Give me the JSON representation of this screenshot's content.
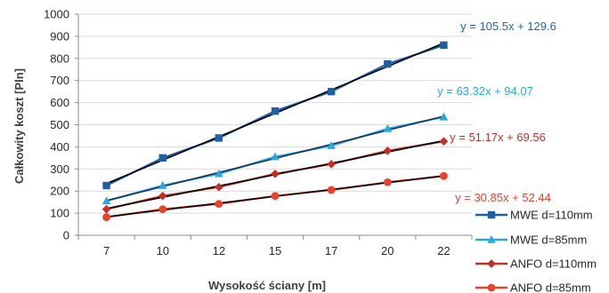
{
  "chart_data": {
    "type": "line",
    "title": "",
    "xlabel": "Wysokość ściany [m]",
    "ylabel": "Całkowity koszt [Pln]",
    "categories": [
      "7",
      "10",
      "12",
      "15",
      "17",
      "20",
      "22"
    ],
    "ylim": [
      0,
      1000
    ],
    "yticks": [
      0,
      100,
      200,
      300,
      400,
      500,
      600,
      700,
      800,
      900,
      1000
    ],
    "grid": "horizontal",
    "legend_position": "right",
    "series": [
      {
        "name": "MWE d=110mm",
        "values": [
          225,
          350,
          440,
          562,
          650,
          775,
          860
        ],
        "color": "#1f5fa6",
        "marker": "square",
        "trend_color": "#000000",
        "equation": "y = 105.5x + 129.6",
        "equation_color": "#1e66a8"
      },
      {
        "name": "MWE d=85mm",
        "values": [
          155,
          225,
          278,
          355,
          405,
          482,
          535
        ],
        "color": "#2aa8dd",
        "marker": "triangle",
        "trend_color": "#1a2e55",
        "equation": "y = 63.32x + 94.07",
        "equation_color": "#2aa8dd"
      },
      {
        "name": "ANFO d=110mm",
        "values": [
          118,
          178,
          218,
          278,
          322,
          382,
          425
        ],
        "color": "#c0302a",
        "marker": "diamond",
        "trend_color": "#000000",
        "equation": "y = 51.17x + 69.56",
        "equation_color": "#c0302a"
      },
      {
        "name": "ANFO d=85mm",
        "values": [
          82,
          118,
          142,
          178,
          205,
          240,
          268
        ],
        "color": "#e8412c",
        "marker": "circle",
        "trend_color": "#000000",
        "equation": "y = 30.85x + 52.44",
        "equation_color": "#e8412c"
      }
    ]
  }
}
